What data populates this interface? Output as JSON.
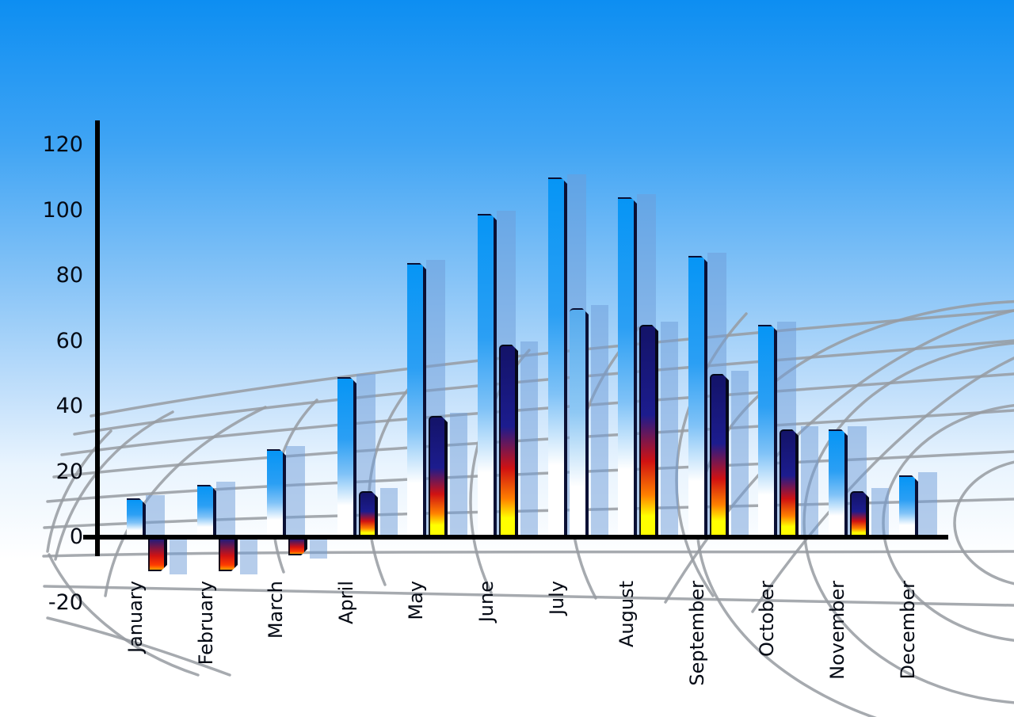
{
  "chart_data": {
    "type": "bar",
    "title": "",
    "categories": [
      "January",
      "February",
      "March",
      "April",
      "May",
      "June",
      "July",
      "August",
      "September",
      "October",
      "November",
      "December"
    ],
    "series": [
      {
        "name": "primary-blue",
        "values": [
          12,
          16,
          27,
          49,
          84,
          99,
          110,
          104,
          86,
          65,
          33,
          19
        ]
      },
      {
        "name": "secondary-flame",
        "values": [
          -10,
          -10,
          -5,
          14,
          37,
          59,
          70,
          65,
          50,
          33,
          14,
          null
        ],
        "point_styles": [
          "flame",
          "flame",
          "flame",
          "flame",
          "flame",
          "flame",
          "blue",
          "flame",
          "flame",
          "flame",
          "flame",
          null
        ]
      }
    ],
    "y_ticks": [
      120,
      100,
      80,
      60,
      40,
      20,
      0,
      -20
    ],
    "ylim": [
      -20,
      120
    ],
    "x_tick_rotation": -90,
    "legend": "none",
    "grid": "curved gray perspective mesh behind bars",
    "background": "sky-blue to white vertical gradient"
  },
  "colors": {
    "sky_top": "#0d8ef2",
    "sky_upper": "#3fa4f4",
    "sky_mid": "#8ac5f7",
    "sky_lower": "#c3e0fb",
    "sky_bottom": "#ffffff",
    "bar_blue_top": "#0695f5",
    "bar_blue_mid": "#2b9ff4",
    "bar_blue_light": "#7fc2f7",
    "bar_blue_bottom": "#ffffff",
    "bar_edge_dark": "#0b1034",
    "flame_navy": "#1c1c8e",
    "flame_red": "#d01212",
    "flame_orange": "#ff8000",
    "flame_yellow": "#ffff00",
    "secondary_blue_top": "#55abee",
    "shadow_bar": "rgba(110,155,215,0.5)",
    "axis": "#000000",
    "grid_line": "#979ba1",
    "label_text": "#050a14"
  }
}
